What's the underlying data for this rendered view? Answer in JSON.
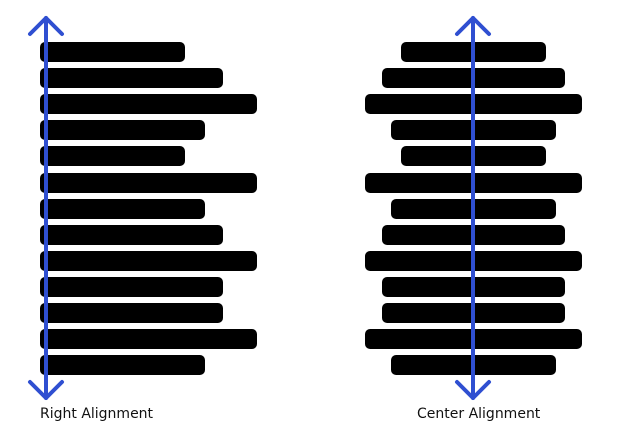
{
  "colors": {
    "bar": "#000000",
    "arrow": "#2f4fd1"
  },
  "left_panel": {
    "caption": "Right Alignment",
    "bar_lengths": [
      0.56,
      0.71,
      0.84,
      0.64,
      0.56,
      0.84,
      0.64,
      0.71,
      0.84,
      0.71,
      0.71,
      0.84,
      0.64
    ]
  },
  "right_panel": {
    "caption": "Center Alignment",
    "bar_lengths": [
      0.56,
      0.71,
      0.84,
      0.64,
      0.56,
      0.84,
      0.64,
      0.71,
      0.84,
      0.71,
      0.71,
      0.84,
      0.64
    ]
  },
  "arrow_icon": "double-headed-vertical-arrow-icon"
}
